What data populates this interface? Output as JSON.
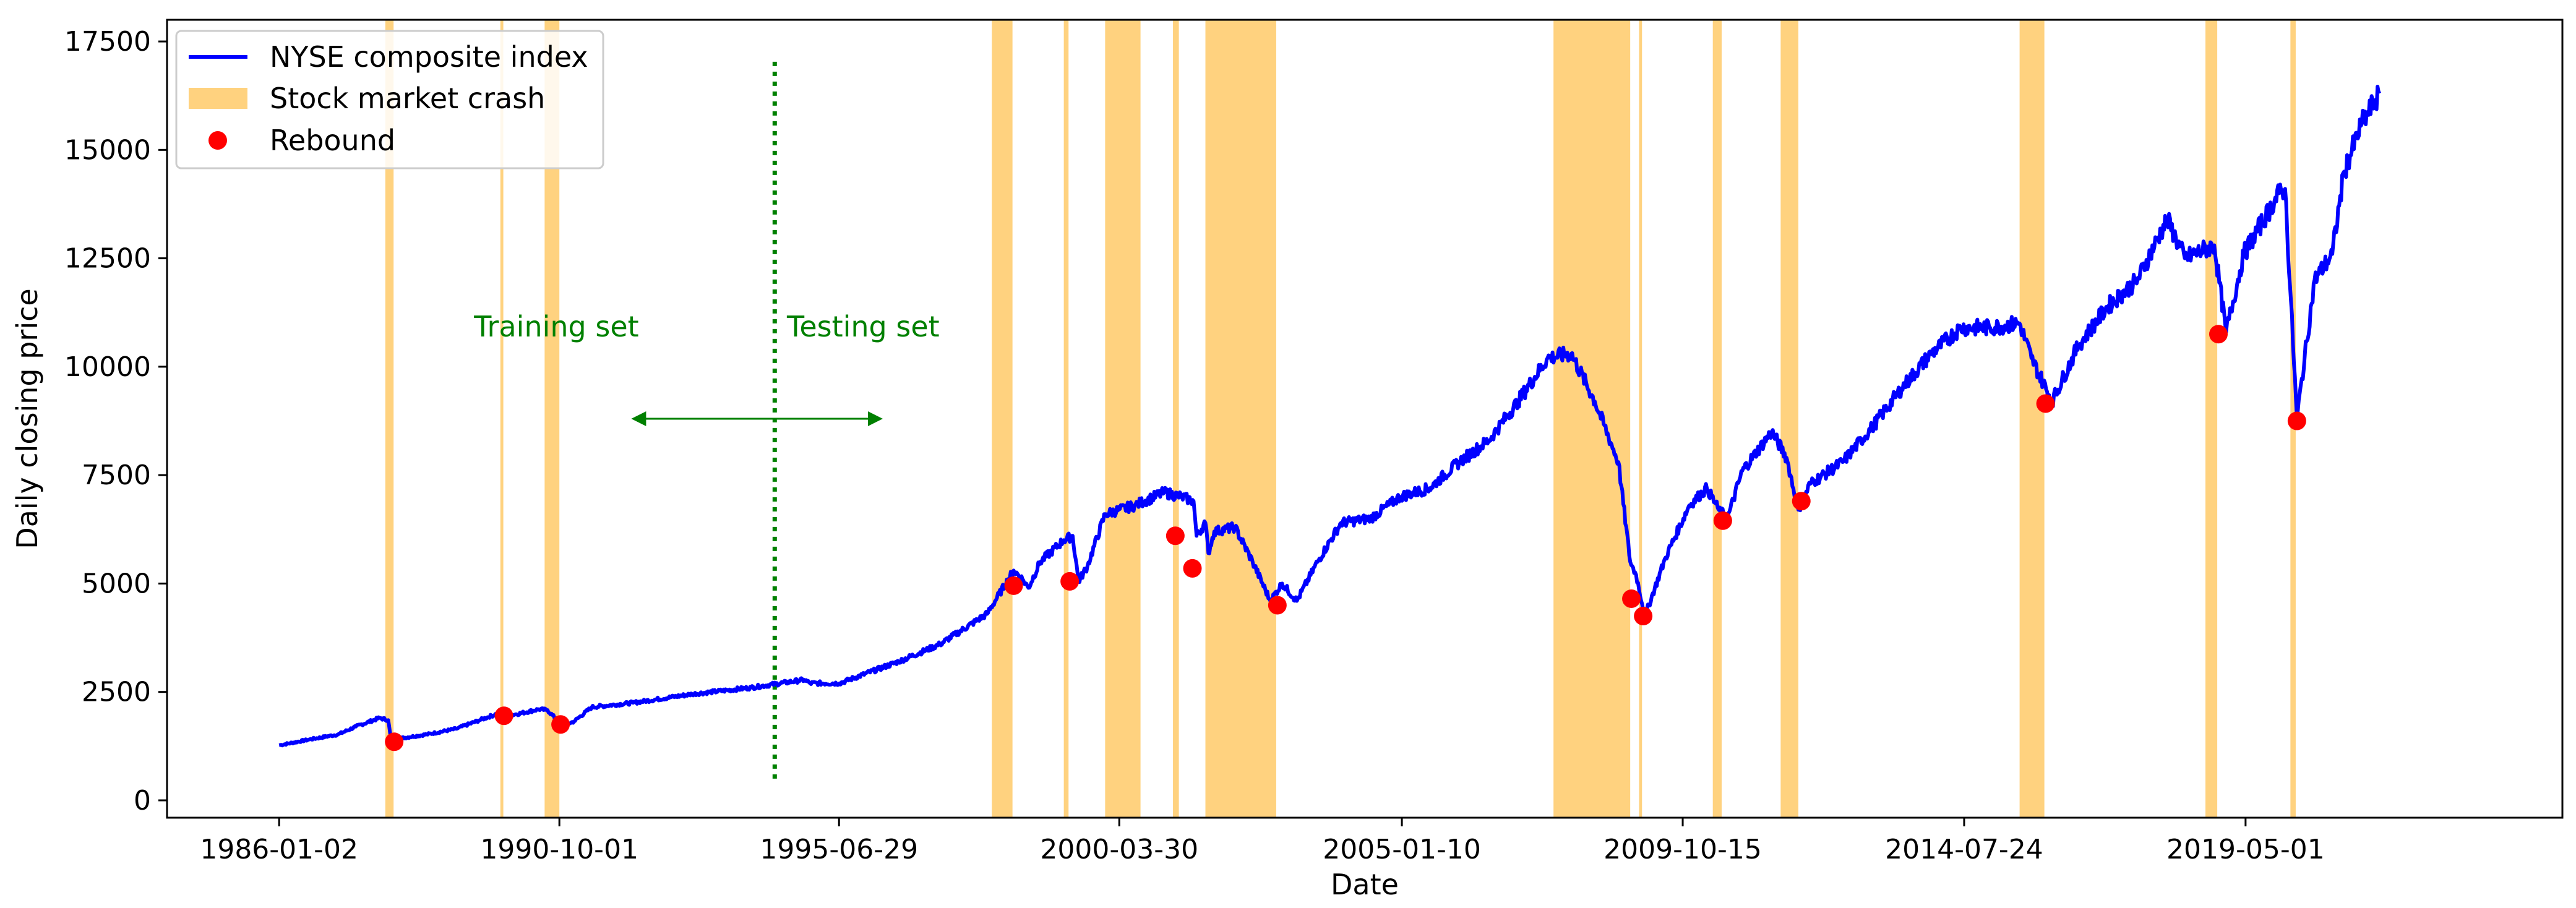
{
  "chart_data": {
    "type": "line",
    "title": "",
    "xlabel": "Date",
    "ylabel": "Daily closing price",
    "x_range_years": [
      1984.1,
      2024.7
    ],
    "ylim": [
      -400,
      18000
    ],
    "x_ticks": [
      {
        "label": "1986-01-02",
        "year": 1986.0
      },
      {
        "label": "1990-10-01",
        "year": 1990.75
      },
      {
        "label": "1995-06-29",
        "year": 1995.49
      },
      {
        "label": "2000-03-30",
        "year": 2000.24
      },
      {
        "label": "2005-01-10",
        "year": 2005.03
      },
      {
        "label": "2009-10-15",
        "year": 2009.79
      },
      {
        "label": "2014-07-24",
        "year": 2014.56
      },
      {
        "label": "2019-05-01",
        "year": 2019.33
      }
    ],
    "y_ticks": [
      0,
      2500,
      5000,
      7500,
      10000,
      12500,
      15000,
      17500
    ],
    "y_tick_labels": [
      "0",
      "2500",
      "5000",
      "7500",
      "10000",
      "12500",
      "15000",
      "17500"
    ],
    "legend": {
      "placement": "top-left",
      "entries": [
        {
          "label": "NYSE composite index",
          "kind": "line",
          "color": "#0000ff"
        },
        {
          "label": "Stock market crash",
          "kind": "patch",
          "color": "#ffd27f"
        },
        {
          "label": "Rebound",
          "kind": "marker",
          "color": "#ff0000"
        }
      ]
    },
    "series": [
      {
        "name": "NYSE composite index",
        "color": "#0000ff",
        "points": [
          [
            1986.0,
            1270
          ],
          [
            1986.5,
            1400
          ],
          [
            1987.0,
            1520
          ],
          [
            1987.3,
            1700
          ],
          [
            1987.7,
            1900
          ],
          [
            1987.85,
            1850
          ],
          [
            1987.9,
            1350
          ],
          [
            1988.0,
            1420
          ],
          [
            1988.5,
            1520
          ],
          [
            1989.0,
            1650
          ],
          [
            1989.4,
            1850
          ],
          [
            1989.8,
            2050
          ],
          [
            1989.85,
            1960
          ],
          [
            1990.0,
            1980
          ],
          [
            1990.4,
            2100
          ],
          [
            1990.55,
            2080
          ],
          [
            1990.8,
            1720
          ],
          [
            1991.0,
            1820
          ],
          [
            1991.3,
            2150
          ],
          [
            1992.0,
            2250
          ],
          [
            1993.0,
            2450
          ],
          [
            1994.0,
            2600
          ],
          [
            1994.9,
            2780
          ],
          [
            1995.0,
            2700
          ],
          [
            1995.5,
            2700
          ],
          [
            1996.5,
            3200
          ],
          [
            1997.2,
            3600
          ],
          [
            1998.0,
            4300
          ],
          [
            1998.45,
            5300
          ],
          [
            1998.6,
            5100
          ],
          [
            1998.7,
            4900
          ],
          [
            1998.9,
            5500
          ],
          [
            1999.3,
            6000
          ],
          [
            1999.45,
            6100
          ],
          [
            1999.55,
            5050
          ],
          [
            1999.7,
            5400
          ],
          [
            2000.0,
            6600
          ],
          [
            2000.5,
            6800
          ],
          [
            2001.0,
            7100
          ],
          [
            2001.3,
            7000
          ],
          [
            2001.5,
            6900
          ],
          [
            2001.55,
            6100
          ],
          [
            2001.7,
            6400
          ],
          [
            2001.75,
            5700
          ],
          [
            2001.85,
            6200
          ],
          [
            2002.2,
            6300
          ],
          [
            2002.5,
            5500
          ],
          [
            2002.8,
            4600
          ],
          [
            2003.0,
            5000
          ],
          [
            2003.25,
            4600
          ],
          [
            2003.6,
            5500
          ],
          [
            2004.0,
            6400
          ],
          [
            2004.5,
            6500
          ],
          [
            2005.0,
            7000
          ],
          [
            2005.5,
            7200
          ],
          [
            2006.0,
            7800
          ],
          [
            2006.5,
            8300
          ],
          [
            2007.0,
            9200
          ],
          [
            2007.5,
            10200
          ],
          [
            2007.9,
            10300
          ],
          [
            2008.3,
            9200
          ],
          [
            2008.7,
            7800
          ],
          [
            2008.9,
            5500
          ],
          [
            2009.0,
            5200
          ],
          [
            2009.15,
            4250
          ],
          [
            2009.5,
            5600
          ],
          [
            2009.9,
            6800
          ],
          [
            2010.2,
            7200
          ],
          [
            2010.4,
            6700
          ],
          [
            2010.55,
            6500
          ],
          [
            2010.8,
            7600
          ],
          [
            2011.3,
            8500
          ],
          [
            2011.55,
            7900
          ],
          [
            2011.75,
            6700
          ],
          [
            2011.95,
            7300
          ],
          [
            2012.5,
            7800
          ],
          [
            2013.0,
            8600
          ],
          [
            2013.5,
            9500
          ],
          [
            2014.0,
            10300
          ],
          [
            2014.5,
            10900
          ],
          [
            2015.0,
            10900
          ],
          [
            2015.5,
            11000
          ],
          [
            2015.7,
            10200
          ],
          [
            2016.05,
            9200
          ],
          [
            2016.5,
            10500
          ],
          [
            2017.0,
            11400
          ],
          [
            2017.5,
            12000
          ],
          [
            2018.0,
            13400
          ],
          [
            2018.3,
            12500
          ],
          [
            2018.8,
            12800
          ],
          [
            2019.0,
            10800
          ],
          [
            2019.3,
            12600
          ],
          [
            2019.9,
            14000
          ],
          [
            2020.0,
            14100
          ],
          [
            2020.2,
            8800
          ],
          [
            2020.5,
            12000
          ],
          [
            2020.8,
            12600
          ],
          [
            2021.0,
            14500
          ],
          [
            2021.3,
            15600
          ],
          [
            2021.6,
            16300
          ]
        ]
      }
    ],
    "crash_periods": [
      [
        1987.8,
        1987.94
      ],
      [
        1989.75,
        1989.8
      ],
      [
        1990.5,
        1990.75
      ],
      [
        1998.08,
        1998.43
      ],
      [
        1999.3,
        1999.38
      ],
      [
        2000.0,
        2000.6
      ],
      [
        2001.15,
        2001.25
      ],
      [
        2001.7,
        2002.9
      ],
      [
        2007.6,
        2008.9
      ],
      [
        2009.05,
        2009.1
      ],
      [
        2010.3,
        2010.45
      ],
      [
        2011.45,
        2011.75
      ],
      [
        2015.5,
        2015.92
      ],
      [
        2018.65,
        2018.85
      ],
      [
        2020.09,
        2020.18
      ]
    ],
    "rebounds": [
      [
        1987.95,
        1350
      ],
      [
        1989.81,
        1950
      ],
      [
        1990.77,
        1750
      ],
      [
        1998.45,
        4950
      ],
      [
        1999.4,
        5050
      ],
      [
        2001.19,
        6100
      ],
      [
        2001.48,
        5350
      ],
      [
        2002.92,
        4500
      ],
      [
        2008.92,
        4650
      ],
      [
        2009.12,
        4250
      ],
      [
        2010.47,
        6450
      ],
      [
        2011.8,
        6900
      ],
      [
        2015.94,
        9150
      ],
      [
        2018.87,
        10750
      ],
      [
        2020.2,
        8750
      ]
    ],
    "annotations": {
      "split_year": 1994.4,
      "split_line_from": 500,
      "split_line_to": 17100,
      "split_line_color": "#008000",
      "training_label": "Training set",
      "testing_label": "Testing set",
      "label_color": "#008000",
      "arrow_from_year": 1992.0,
      "arrow_to_year": 1996.2,
      "arrow_y": 8800,
      "training_label_year": 1990.7,
      "testing_label_year": 1995.9,
      "labels_y": 10700
    }
  }
}
